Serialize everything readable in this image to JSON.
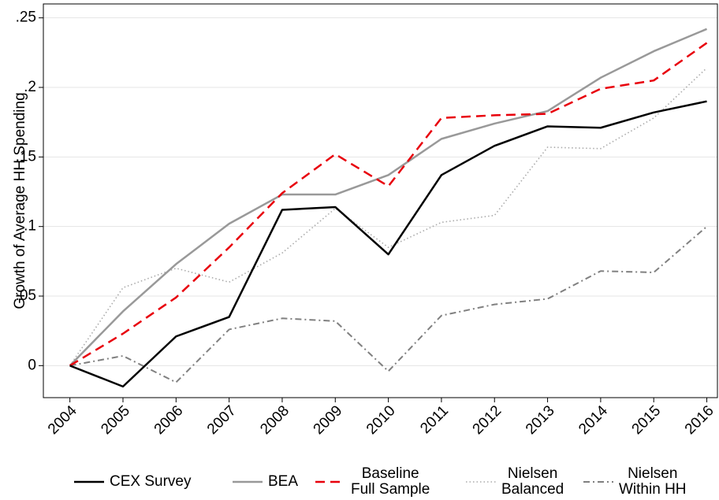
{
  "chart_data": {
    "type": "line",
    "y_label": "Growth of Average HH Spending",
    "x": [
      2004,
      2005,
      2006,
      2007,
      2008,
      2009,
      2010,
      2011,
      2012,
      2013,
      2014,
      2015,
      2016
    ],
    "xlim": [
      2003.5,
      2016.2
    ],
    "xticks": [
      2004,
      2005,
      2006,
      2007,
      2008,
      2009,
      2010,
      2011,
      2012,
      2013,
      2014,
      2015,
      2016
    ],
    "ylim": [
      -0.023,
      0.26
    ],
    "yticks": [
      0,
      {
        "value": 0.05,
        "label": ".05"
      },
      {
        "value": 0.1,
        "label": ".1"
      },
      {
        "value": 0.15,
        "label": ".15"
      },
      {
        "value": 0.2,
        "label": ".2"
      },
      {
        "value": 0.25,
        "label": ".25"
      }
    ],
    "grid": true,
    "legend": "bottom",
    "series": [
      {
        "name": "CEX Survey",
        "color": "#000000",
        "style": "solid",
        "values": [
          0,
          -0.015,
          0.021,
          0.035,
          0.112,
          0.114,
          0.08,
          0.137,
          0.158,
          0.172,
          0.171,
          0.182,
          0.19
        ]
      },
      {
        "name": "BEA",
        "color": "#999999",
        "style": "solid",
        "values": [
          0,
          0.039,
          0.073,
          0.102,
          0.123,
          0.123,
          0.137,
          0.163,
          0.174,
          0.183,
          0.207,
          0.226,
          0.242
        ]
      },
      {
        "name": "Baseline\nFull Sample",
        "color": "#e8000b",
        "style": "dashed",
        "values": [
          0,
          0.023,
          0.049,
          0.085,
          0.124,
          0.152,
          0.129,
          0.178,
          0.18,
          0.181,
          0.199,
          0.205,
          0.232
        ]
      },
      {
        "name": "Nielsen\nBalanced",
        "color": "#aaaaaa",
        "style": "dotted",
        "values": [
          0,
          0.056,
          0.07,
          0.06,
          0.081,
          0.113,
          0.085,
          0.103,
          0.108,
          0.157,
          0.156,
          0.178,
          0.214
        ]
      },
      {
        "name": "Nielsen\nWithin HH",
        "color": "#808080",
        "style": "dashdot",
        "values": [
          0,
          0.007,
          -0.012,
          0.026,
          0.034,
          0.032,
          -0.004,
          0.036,
          0.044,
          0.048,
          0.068,
          0.067,
          0.1
        ]
      }
    ]
  }
}
